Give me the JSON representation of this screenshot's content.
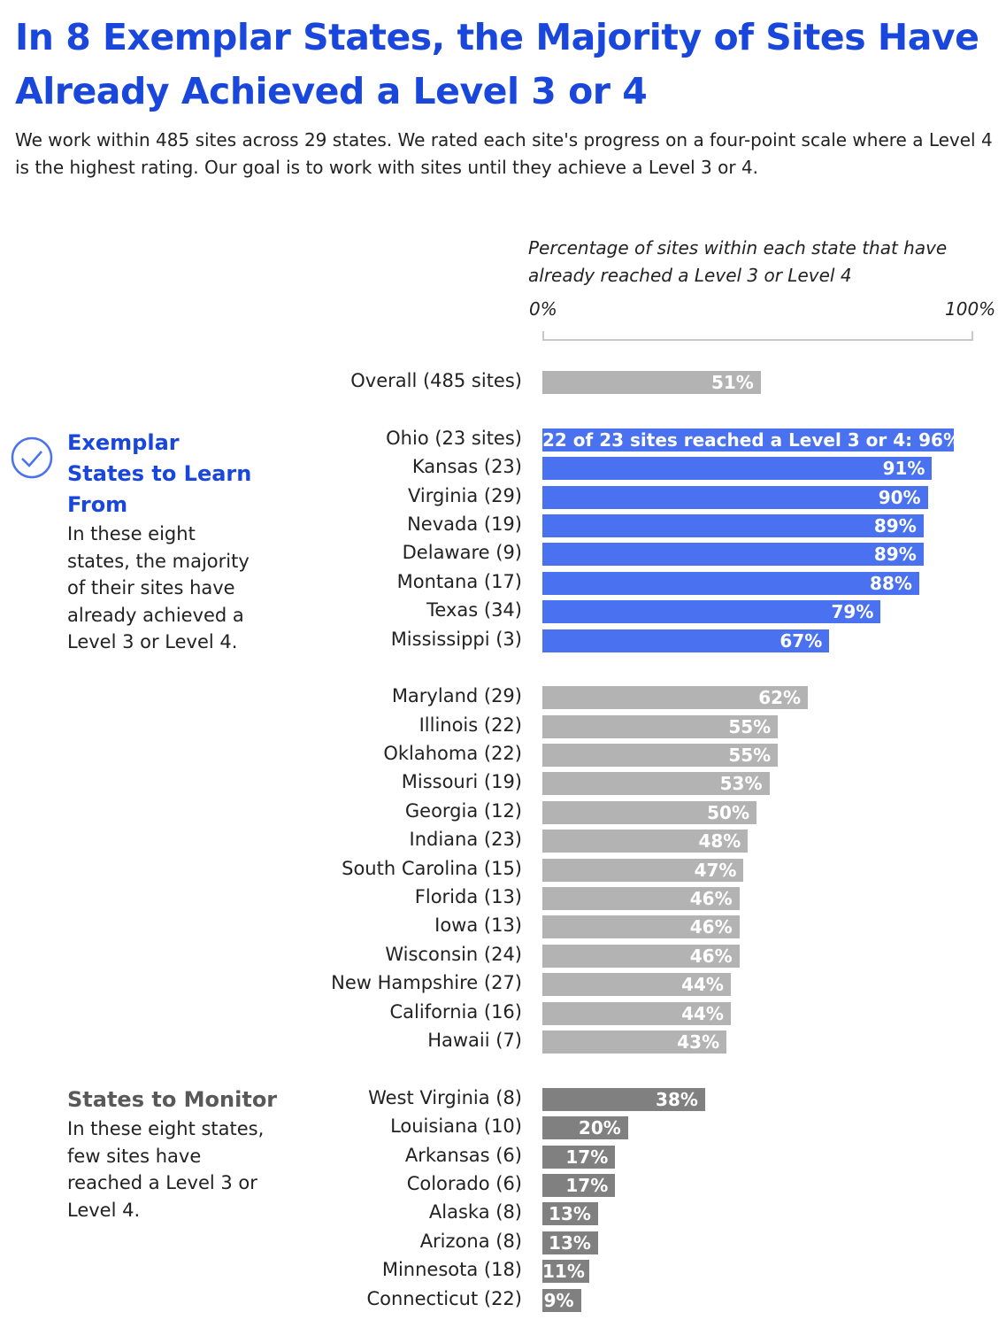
{
  "title": "In 8 Exemplar States, the Majority of Sites Have Already Achieved a Level 3 or 4",
  "subtitle": "We work within 485 sites across 29 states. We rated each site's progress on a four-point scale where a Level 4 is the highest rating. Our goal is to work with sites until they achieve a Level 3 or 4.",
  "exemplar_note": {
    "heading": "Exemplar States to Learn From",
    "text": "In these eight states, the majority of their sites have already achieved a Level 3 or Level 4.",
    "icon": "check-circle-icon"
  },
  "monitor_note": {
    "heading": "States to Monitor",
    "text": "In these eight states, few sites have reached a Level 3 or Level 4."
  },
  "colors": {
    "title": "#1a47db",
    "exemplar": "#4a72f0",
    "middle": "#b3b3b3",
    "monitor": "#808080"
  },
  "chart_data": {
    "type": "bar",
    "orientation": "horizontal",
    "axis_title": "Percentage of sites within each state that have already reached a Level 3 or Level 4",
    "xlim": [
      0,
      100
    ],
    "tick_labels": [
      "0%",
      "100%"
    ],
    "groups": [
      {
        "key": "overall",
        "color": "#b3b3b3",
        "rows": [
          {
            "label": "Overall (485 sites)",
            "value": 51,
            "data_label": "51%"
          }
        ]
      },
      {
        "key": "exemplar",
        "color": "#4a72f0",
        "rows": [
          {
            "label": "Ohio (23 sites)",
            "value": 96,
            "data_label": "22 of 23 sites reached a Level 3 or 4: 96%"
          },
          {
            "label": "Kansas (23)",
            "value": 91,
            "data_label": "91%"
          },
          {
            "label": "Virginia (29)",
            "value": 90,
            "data_label": "90%"
          },
          {
            "label": "Nevada (19)",
            "value": 89,
            "data_label": "89%"
          },
          {
            "label": "Delaware (9)",
            "value": 89,
            "data_label": "89%"
          },
          {
            "label": "Montana (17)",
            "value": 88,
            "data_label": "88%"
          },
          {
            "label": "Texas (34)",
            "value": 79,
            "data_label": "79%"
          },
          {
            "label": "Mississippi (3)",
            "value": 67,
            "data_label": "67%"
          }
        ]
      },
      {
        "key": "middle",
        "color": "#b3b3b3",
        "rows": [
          {
            "label": "Maryland (29)",
            "value": 62,
            "data_label": "62%"
          },
          {
            "label": "Illinois (22)",
            "value": 55,
            "data_label": "55%"
          },
          {
            "label": "Oklahoma (22)",
            "value": 55,
            "data_label": "55%"
          },
          {
            "label": "Missouri (19)",
            "value": 53,
            "data_label": "53%"
          },
          {
            "label": "Georgia (12)",
            "value": 50,
            "data_label": "50%"
          },
          {
            "label": "Indiana (23)",
            "value": 48,
            "data_label": "48%"
          },
          {
            "label": "South Carolina (15)",
            "value": 47,
            "data_label": "47%"
          },
          {
            "label": "Florida (13)",
            "value": 46,
            "data_label": "46%"
          },
          {
            "label": "Iowa (13)",
            "value": 46,
            "data_label": "46%"
          },
          {
            "label": "Wisconsin (24)",
            "value": 46,
            "data_label": "46%"
          },
          {
            "label": "New Hampshire (27)",
            "value": 44,
            "data_label": "44%"
          },
          {
            "label": "California (16)",
            "value": 44,
            "data_label": "44%"
          },
          {
            "label": "Hawaii (7)",
            "value": 43,
            "data_label": "43%"
          }
        ]
      },
      {
        "key": "monitor",
        "color": "#808080",
        "rows": [
          {
            "label": "West Virginia (8)",
            "value": 38,
            "data_label": "38%"
          },
          {
            "label": "Louisiana (10)",
            "value": 20,
            "data_label": "20%"
          },
          {
            "label": "Arkansas (6)",
            "value": 17,
            "data_label": "17%"
          },
          {
            "label": "Colorado (6)",
            "value": 17,
            "data_label": "17%"
          },
          {
            "label": "Alaska (8)",
            "value": 13,
            "data_label": "13%"
          },
          {
            "label": "Arizona (8)",
            "value": 13,
            "data_label": "13%"
          },
          {
            "label": "Minnesota (18)",
            "value": 11,
            "data_label": "11%"
          },
          {
            "label": "Connecticut (22)",
            "value": 9,
            "data_label": "9%"
          }
        ]
      }
    ]
  }
}
